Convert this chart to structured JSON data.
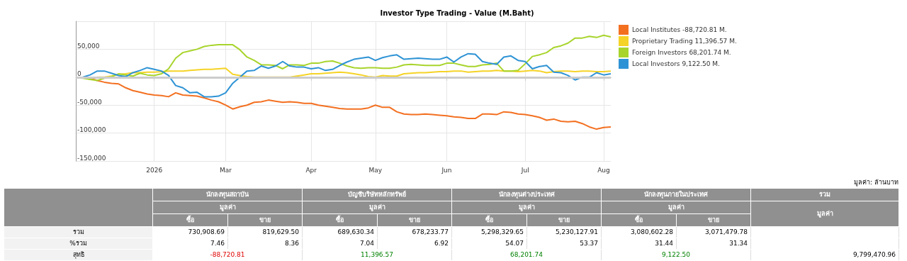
{
  "chart_data": [
    {
      "type": "line",
      "title": "Investor Type Trading - Value (M.Baht)",
      "categories": [
        null,
        null,
        null,
        null,
        null,
        null,
        null,
        null,
        null,
        null,
        null,
        "2026",
        null,
        null,
        null,
        null,
        null,
        null,
        null,
        null,
        null,
        "Mar",
        null,
        null,
        null,
        null,
        null,
        null,
        null,
        null,
        null,
        null,
        null,
        "Apr",
        null,
        null,
        null,
        null,
        null,
        null,
        null,
        null,
        "May",
        null,
        null,
        null,
        null,
        null,
        null,
        null,
        null,
        null,
        "Jun",
        null,
        null,
        null,
        null,
        null,
        null,
        null,
        null,
        null,
        null,
        "Jul",
        null,
        null,
        null,
        null,
        null,
        null,
        null,
        null,
        null,
        null,
        "Aug",
        null
      ],
      "series": [
        {
          "name": "Local Institutes -88,720.81 M.",
          "color": "#f37021",
          "values": [
            -1000,
            -1000,
            -2000,
            -6000,
            -9000,
            -11000,
            -12000,
            -19000,
            -24000,
            -27000,
            -30000,
            -32000,
            -33000,
            -35000,
            -28000,
            -32000,
            -33000,
            -34000,
            -37000,
            -41000,
            -44000,
            -50000,
            -57000,
            -53000,
            -50000,
            -45000,
            -44000,
            -41000,
            -43000,
            -45000,
            -44000,
            -45000,
            -47000,
            -47000,
            -50000,
            -52000,
            -54000,
            -56000,
            -57000,
            -57000,
            -57000,
            -55000,
            -50000,
            -54000,
            -54000,
            -62000,
            -66000,
            -67000,
            -67000,
            -66000,
            -67000,
            -68000,
            -69000,
            -71000,
            -72000,
            -74000,
            -74000,
            -66000,
            -66000,
            -67000,
            -62000,
            -63000,
            -66000,
            -67000,
            -69000,
            -72000,
            -77000,
            -75000,
            -79000,
            -80000,
            -79000,
            -83000,
            -89000,
            -93000,
            -90000,
            -89000
          ]
        },
        {
          "name": "Proprietary Trading 11,396.57 M.",
          "color": "#f5d327",
          "values": [
            null,
            null,
            null,
            0,
            0,
            2000,
            5000,
            6000,
            8000,
            8000,
            9000,
            9000,
            10000,
            11000,
            11000,
            11000,
            12000,
            13000,
            14000,
            14000,
            15000,
            16000,
            5000,
            3000,
            1000,
            0,
            0,
            0,
            0,
            0,
            0,
            2000,
            4000,
            6000,
            6000,
            7000,
            8000,
            9000,
            8000,
            6000,
            4000,
            1000,
            0,
            3000,
            2000,
            2000,
            6000,
            7000,
            8000,
            8000,
            9000,
            10000,
            10000,
            11000,
            11000,
            9000,
            10000,
            11000,
            11000,
            12000,
            11000,
            11000,
            10000,
            11000,
            12000,
            11000,
            8000,
            10000,
            11000,
            11000,
            10000,
            11000,
            11000,
            10000,
            10000,
            11000
          ]
        },
        {
          "name": "Foreign Investors 68,201.74 M.",
          "color": "#a8d42c",
          "values": [
            -1000,
            -2000,
            -4000,
            -6000,
            -2000,
            1000,
            6000,
            4000,
            2000,
            7000,
            4000,
            3000,
            6000,
            15000,
            34000,
            44000,
            47000,
            50000,
            55000,
            57000,
            58000,
            58000,
            58000,
            49000,
            36000,
            30000,
            22000,
            22000,
            21000,
            15000,
            22000,
            22000,
            21000,
            25000,
            25000,
            28000,
            29000,
            25000,
            20000,
            17000,
            16000,
            17000,
            17000,
            16000,
            16000,
            18000,
            22000,
            23000,
            22000,
            21000,
            21000,
            21000,
            25000,
            25000,
            22000,
            19000,
            19000,
            22000,
            23000,
            25000,
            11000,
            11000,
            12000,
            24000,
            37000,
            40000,
            44000,
            53000,
            56000,
            61000,
            70000,
            70000,
            73000,
            71000,
            75000,
            72000
          ]
        },
        {
          "name": "Local Investors 9,122.50 M.",
          "color": "#2e93d5",
          "values": [
            -1000,
            0,
            4000,
            11000,
            11000,
            7000,
            3000,
            1000,
            8000,
            12000,
            17000,
            14000,
            11000,
            3000,
            -15000,
            -19000,
            -28000,
            -27000,
            -35000,
            -35000,
            -34000,
            -28000,
            -11000,
            0,
            11000,
            12000,
            20000,
            16000,
            20000,
            28000,
            20000,
            18000,
            18000,
            15000,
            17000,
            12000,
            14000,
            21000,
            27000,
            32000,
            34000,
            36000,
            30000,
            35000,
            38000,
            40000,
            32000,
            33000,
            34000,
            33000,
            32000,
            32000,
            36000,
            27000,
            36000,
            42000,
            41000,
            28000,
            25000,
            23000,
            36000,
            38000,
            30000,
            28000,
            15000,
            19000,
            21000,
            9000,
            8000,
            3000,
            -5000,
            0,
            0,
            8000,
            4000,
            6000
          ]
        }
      ],
      "ylim": [
        -150000,
        100000
      ],
      "yticks": [
        {
          "value": -150000,
          "label": "-150,000"
        },
        {
          "value": -100000,
          "label": "-100,000"
        },
        {
          "value": -50000,
          "label": "-50,000"
        },
        0,
        {
          "value": 50000,
          "label": "50,000"
        },
        {
          "value": 100000,
          "label": null
        }
      ],
      "ref_lines": [
        {
          "axis": "y",
          "value": 0,
          "color": "#cccccc"
        }
      ],
      "grid": true,
      "legend": "top right",
      "marker": "none",
      "line_style": "solid"
    },
    {
      "type": "other",
      "annotations": [
        "มูลค่า: ล้านบาท",
        "นักลงทุนสถาบัน",
        "บัญชีบริษัทหลักทรัพย์",
        "นักลงทุนต่างประเทศ",
        "นักลงทุนภายในประเทศ",
        "รวม",
        "มูลค่า",
        "มูลค่า",
        "มูลค่า",
        "มูลค่า",
        "มูลค่า",
        "ซื้อ",
        "ขาย",
        "ซื้อ",
        "ขาย",
        "ซื้อ",
        "ขาย",
        "ซื้อ",
        "ขาย",
        "รวม",
        "730,908.69",
        "819,629.50",
        "689,630.34",
        "678,233.77",
        "5,298,329.65",
        "5,230,127.91",
        "3,080,602.28",
        "3,071,479.78",
        "%รวม",
        "7.46",
        "8.36",
        "7.04",
        "6.92",
        "54.07",
        "53.37",
        "31.44",
        "31.34",
        "สุทธิ",
        "-88,720.81",
        "11,396.57",
        "68,201.74",
        "9,122.50",
        "9,799,470.96"
      ]
    }
  ]
}
